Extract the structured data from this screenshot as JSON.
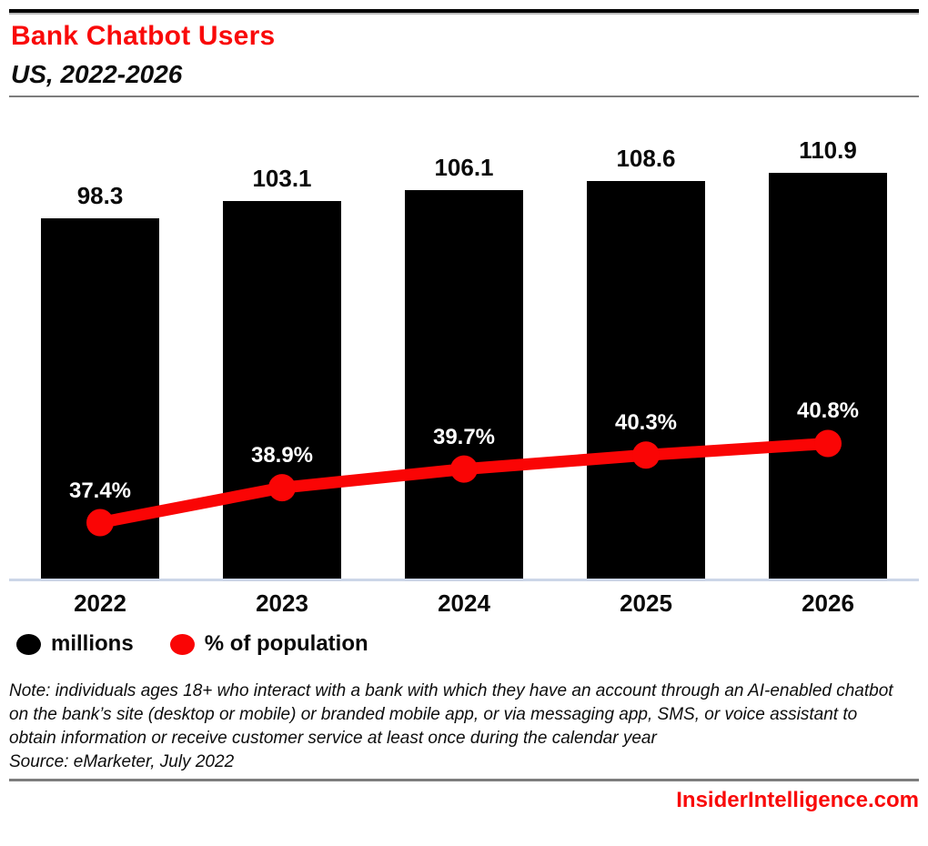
{
  "header": {
    "title": "Bank Chatbot Users",
    "subtitle": "US, 2022-2026"
  },
  "chart_data": {
    "type": "bar",
    "subtype": "bar-with-line-overlay",
    "title": "Bank Chatbot Users",
    "subtitle": "US, 2022-2026",
    "categories": [
      "2022",
      "2023",
      "2024",
      "2025",
      "2026"
    ],
    "series": [
      {
        "name": "millions",
        "type": "bar",
        "color": "#000000",
        "values": [
          98.3,
          103.1,
          106.1,
          108.6,
          110.9
        ],
        "labels": [
          "98.3",
          "103.1",
          "106.1",
          "108.6",
          "110.9"
        ],
        "ylim": [
          0,
          126
        ]
      },
      {
        "name": "% of population",
        "type": "line",
        "color": "#fa0505",
        "values": [
          37.4,
          38.9,
          39.7,
          40.3,
          40.8
        ],
        "labels": [
          "37.4%",
          "38.9%",
          "39.7%",
          "40.3%",
          "40.8%"
        ],
        "ylim": [
          35,
          54.8
        ]
      }
    ],
    "grid": false,
    "legend_position": "bottom-left",
    "axis_line_color": "#ccd6e8"
  },
  "legend": {
    "items": [
      {
        "label": "millions",
        "color": "#000000"
      },
      {
        "label": "% of population",
        "color": "#fa0505"
      }
    ]
  },
  "footnotes": {
    "note": "Note: individuals ages 18+ who interact with a bank with which they have an account through an AI-enabled chatbot on the bank’s site (desktop or mobile) or branded mobile app, or via messaging app, SMS, or voice assistant to obtain information or receive customer service at least once during the calendar year",
    "source": "Source: eMarketer, July 2022"
  },
  "footer": {
    "site": "InsiderIntelligence.com"
  },
  "colors": {
    "accent_red": "#f90a0a",
    "bar_black": "#000000",
    "baseline_blue": "#ccd6e8"
  }
}
